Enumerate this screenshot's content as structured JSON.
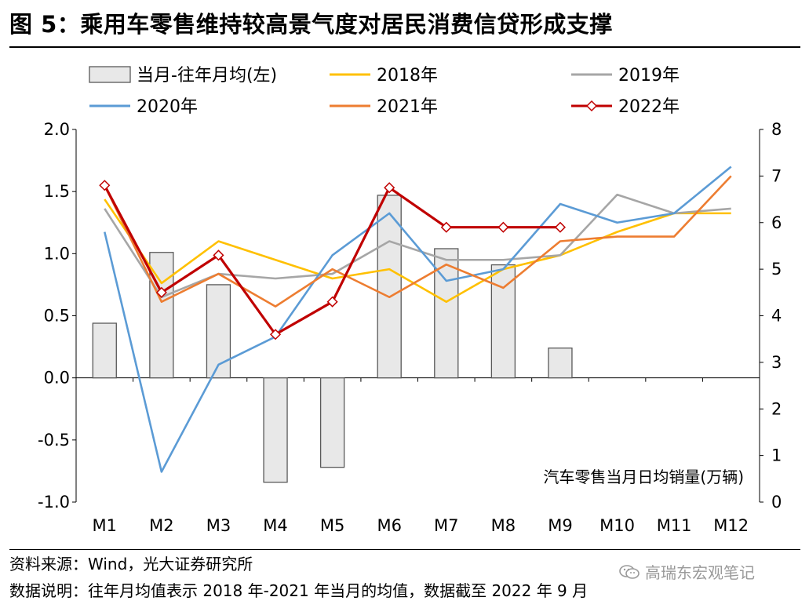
{
  "title": "图 5：乘用车零售维持较高景气度对居民消费信贷形成支撑",
  "footer": {
    "source": "资料来源：Wind，光大证券研究所",
    "note": "数据说明：往年月均值表示 2018 年-2021 年当月的均值，数据截至 2022 年 9 月"
  },
  "watermark": {
    "text": "高瑞东宏观笔记",
    "icon": "wechat-icon"
  },
  "chart_data": {
    "type": "bar",
    "categories": [
      "M1",
      "M2",
      "M3",
      "M4",
      "M5",
      "M6",
      "M7",
      "M8",
      "M9",
      "M10",
      "M11",
      "M12"
    ],
    "left_axis": {
      "ylim": [
        -1.0,
        2.0
      ],
      "ticks": [
        -1.0,
        -0.5,
        0.0,
        0.5,
        1.0,
        1.5,
        2.0
      ],
      "tick_labels": [
        "-1.0",
        "-0.5",
        "0.0",
        "0.5",
        "1.0",
        "1.5",
        "2.0"
      ]
    },
    "right_axis": {
      "ylim": [
        0,
        8
      ],
      "ticks": [
        0,
        1,
        2,
        3,
        4,
        5,
        6,
        7,
        8
      ],
      "tick_labels": [
        "0",
        "1",
        "2",
        "3",
        "4",
        "5",
        "6",
        "7",
        "8"
      ],
      "label": "汽车零售当月日均销量(万辆)"
    },
    "grid": false,
    "legend_position": "top",
    "bars": {
      "name": "当月-往年月均(左)",
      "axis": "left",
      "color": "#e8e8e8",
      "edge": "#595959",
      "values": [
        0.44,
        1.01,
        0.75,
        -0.84,
        -0.72,
        1.47,
        1.04,
        0.91,
        0.24,
        null,
        null,
        null
      ]
    },
    "series": [
      {
        "name": "2018年",
        "axis": "right",
        "color": "#ffc000",
        "values": [
          6.5,
          4.7,
          5.6,
          5.2,
          4.8,
          5.0,
          4.3,
          5.0,
          5.3,
          5.8,
          6.2,
          6.2
        ]
      },
      {
        "name": "2019年",
        "axis": "right",
        "color": "#a6a6a6",
        "values": [
          6.3,
          4.4,
          4.9,
          4.8,
          4.9,
          5.6,
          5.2,
          5.2,
          5.3,
          6.6,
          6.2,
          6.3
        ]
      },
      {
        "name": "2020年",
        "axis": "right",
        "color": "#5b9bd5",
        "values": [
          5.8,
          0.65,
          2.95,
          3.55,
          5.3,
          6.2,
          4.75,
          5.0,
          6.4,
          6.0,
          6.2,
          7.2
        ]
      },
      {
        "name": "2021年",
        "axis": "right",
        "color": "#ed7d31",
        "values": [
          6.8,
          4.3,
          4.9,
          4.2,
          5.0,
          4.4,
          5.1,
          4.6,
          5.6,
          5.7,
          5.7,
          7.0
        ]
      },
      {
        "name": "2022年",
        "axis": "right",
        "color": "#c00000",
        "marker": "diamond",
        "values": [
          6.8,
          4.5,
          5.3,
          3.6,
          4.3,
          6.75,
          5.9,
          5.9,
          5.9,
          null,
          null,
          null
        ]
      }
    ]
  }
}
